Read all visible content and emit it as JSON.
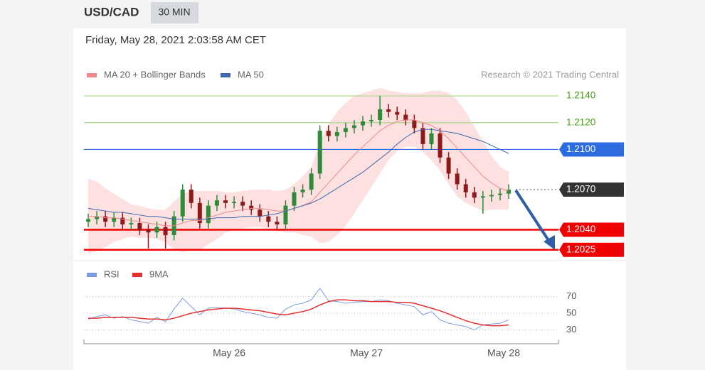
{
  "header": {
    "symbol": "USD/CAD",
    "timeframe": "30 MIN",
    "timestamp": "Friday, May 28, 2021 2:03:58 AM CET"
  },
  "chart_data": [
    {
      "type": "candlestick",
      "annotation": "Research © 2021 Trading Central",
      "categories": [
        null,
        null,
        null,
        null,
        null,
        null,
        null,
        null,
        null,
        null,
        null,
        null,
        null,
        null,
        null,
        null,
        null,
        null,
        null,
        null,
        null,
        null,
        null,
        null,
        null,
        null,
        null,
        null,
        null,
        null,
        null,
        null,
        null,
        null,
        null,
        null,
        null,
        null,
        null,
        null,
        null,
        null,
        null,
        null,
        null,
        null,
        null,
        null,
        null,
        null
      ],
      "open": [
        1.2046,
        1.2048,
        1.205,
        1.2046,
        1.2049,
        1.2044,
        1.2045,
        1.204,
        1.2038,
        1.2042,
        1.2036,
        1.205,
        1.207,
        1.206,
        1.2045,
        1.2058,
        1.2062,
        1.206,
        1.2061,
        1.2058,
        1.2055,
        1.205,
        1.2046,
        1.2044,
        1.2058,
        1.2068,
        1.207,
        1.2082,
        1.2114,
        1.211,
        1.2113,
        1.2116,
        1.2118,
        1.2121,
        1.2122,
        1.213,
        1.2128,
        1.2126,
        1.2122,
        1.2116,
        1.2104,
        1.2112,
        1.2094,
        1.2082,
        1.2074,
        1.2068,
        1.2064,
        1.2065,
        1.2066,
        1.2067
      ],
      "high": [
        1.2052,
        1.2054,
        1.2054,
        1.2053,
        1.2053,
        1.2049,
        1.2049,
        1.2044,
        1.2046,
        1.2046,
        1.2054,
        1.2074,
        1.2074,
        1.2064,
        1.2062,
        1.2066,
        1.2066,
        1.2065,
        1.2065,
        1.2062,
        1.2059,
        1.2054,
        1.205,
        1.2062,
        1.2072,
        1.2074,
        1.2086,
        1.2118,
        1.2118,
        1.2117,
        1.212,
        1.2122,
        1.2125,
        1.2126,
        1.214,
        1.2134,
        1.2132,
        1.213,
        1.2126,
        1.212,
        1.2116,
        1.2116,
        1.2098,
        1.2086,
        1.2078,
        1.2072,
        1.2069,
        1.207,
        1.2071,
        1.2074
      ],
      "low": [
        1.2042,
        1.2044,
        1.2042,
        1.2042,
        1.204,
        1.204,
        1.2036,
        1.2026,
        1.2034,
        1.2026,
        1.2032,
        1.2046,
        1.2056,
        1.2041,
        1.2041,
        1.2054,
        1.2056,
        1.2056,
        1.2054,
        1.2051,
        1.2046,
        1.2042,
        1.204,
        1.204,
        1.2054,
        1.2064,
        1.2066,
        1.2078,
        1.2106,
        1.2106,
        1.2109,
        1.2112,
        1.2114,
        1.2117,
        1.2118,
        1.2124,
        1.2122,
        1.2118,
        1.2112,
        1.21,
        1.21,
        1.209,
        1.2078,
        1.207,
        1.2064,
        1.206,
        1.2052,
        1.2061,
        1.2062,
        1.2063
      ],
      "close": [
        1.2048,
        1.205,
        1.2046,
        1.2049,
        1.2044,
        1.2045,
        1.204,
        1.2038,
        1.2042,
        1.2036,
        1.205,
        1.207,
        1.206,
        1.2045,
        1.2058,
        1.2062,
        1.206,
        1.2061,
        1.2058,
        1.2055,
        1.205,
        1.2046,
        1.2044,
        1.2058,
        1.2068,
        1.207,
        1.2082,
        1.2114,
        1.211,
        1.2113,
        1.2116,
        1.2118,
        1.2121,
        1.2122,
        1.213,
        1.2128,
        1.2126,
        1.2122,
        1.2116,
        1.2104,
        1.2112,
        1.2094,
        1.2082,
        1.2074,
        1.2068,
        1.2064,
        1.2065,
        1.2066,
        1.2067,
        1.207
      ],
      "up_color": "#2f8a3a",
      "down_color": "#8c1c1c",
      "series": [
        {
          "name": "MA 20 + Bollinger Bands",
          "color": "#f08a8a",
          "band_color": "#fde0e0",
          "values": [
            1.205,
            1.205,
            1.2049,
            1.2049,
            1.2048,
            1.2047,
            1.2046,
            1.2045,
            1.2044,
            1.2043,
            1.2043,
            1.2045,
            1.2047,
            1.2047,
            1.2049,
            1.2051,
            1.2053,
            1.2054,
            1.2055,
            1.2056,
            1.2056,
            1.2055,
            1.2054,
            1.2054,
            1.2056,
            1.2058,
            1.2061,
            1.2068,
            1.2075,
            1.2082,
            1.2089,
            1.2096,
            1.2102,
            1.2108,
            1.2114,
            1.2118,
            1.2121,
            1.2122,
            1.2122,
            1.212,
            1.2118,
            1.2114,
            1.2108,
            1.2101,
            1.2094,
            1.2087,
            1.208,
            1.2075,
            1.2071,
            1.2069
          ],
          "upper": [
            1.2078,
            1.2076,
            1.2071,
            1.2067,
            1.2063,
            1.2059,
            1.2058,
            1.2056,
            1.2055,
            1.2055,
            1.2061,
            1.2067,
            1.2069,
            1.2069,
            1.2069,
            1.2069,
            1.2068,
            1.2068,
            1.2069,
            1.207,
            1.207,
            1.207,
            1.2069,
            1.207,
            1.2074,
            1.208,
            1.2087,
            1.2106,
            1.2119,
            1.2128,
            1.2135,
            1.214,
            1.2142,
            1.2144,
            1.2146,
            1.2144,
            1.2143,
            1.2142,
            1.2142,
            1.2142,
            1.2144,
            1.2144,
            1.2142,
            1.2137,
            1.2128,
            1.2117,
            1.2106,
            1.2095,
            1.2087,
            1.2083
          ],
          "lower": [
            1.2022,
            1.2024,
            1.2027,
            1.2031,
            1.2033,
            1.2035,
            1.2034,
            1.2034,
            1.2033,
            1.2031,
            1.2025,
            1.2023,
            1.2025,
            1.2025,
            1.2029,
            1.2033,
            1.2038,
            1.204,
            1.2041,
            1.2042,
            1.2042,
            1.204,
            1.2039,
            1.2038,
            1.2038,
            1.2036,
            1.2035,
            1.203,
            1.2031,
            1.2036,
            1.2043,
            1.2052,
            1.2062,
            1.2072,
            1.2082,
            1.2092,
            1.2099,
            1.2102,
            1.2102,
            1.2098,
            1.2092,
            1.2084,
            1.2074,
            1.2065,
            1.206,
            1.2057,
            1.2054,
            1.2055,
            1.2055,
            1.2055
          ]
        },
        {
          "name": "MA 50",
          "color": "#3b68b0",
          "values": [
            1.2056,
            1.2055,
            1.2054,
            1.2053,
            1.2053,
            1.2052,
            1.2051,
            1.205,
            1.205,
            1.2049,
            1.2048,
            1.2048,
            1.2048,
            1.2048,
            1.2048,
            1.2049,
            1.2049,
            1.2049,
            1.205,
            1.205,
            1.205,
            1.2051,
            1.2052,
            1.2054,
            1.2056,
            1.2058,
            1.206,
            1.2063,
            1.2067,
            1.2071,
            1.2075,
            1.2079,
            1.2083,
            1.2088,
            1.2093,
            1.2098,
            1.2104,
            1.2109,
            1.2113,
            1.2115,
            1.2115,
            1.2114,
            1.2113,
            1.2112,
            1.211,
            1.2108,
            1.2106,
            1.2103,
            1.21,
            1.2097
          ]
        }
      ],
      "levels": [
        {
          "value": 1.214,
          "label": "1.2140",
          "color": "#a8d88a",
          "text_color": "#48a010",
          "tag": false
        },
        {
          "value": 1.212,
          "label": "1.2120",
          "color": "#a8d88a",
          "text_color": "#48a010",
          "tag": false
        },
        {
          "value": 1.21,
          "label": "1.2100",
          "color": "#2d6be0",
          "text_color": "#ffffff",
          "tag": true
        },
        {
          "value": 1.207,
          "label": "1.2070",
          "color": "#333333",
          "text_color": "#ffffff",
          "tag": true
        },
        {
          "value": 1.204,
          "label": "1.2040",
          "color": "#f00000",
          "text_color": "#ffffff",
          "tag": true
        },
        {
          "value": 1.2025,
          "label": "1.2025",
          "color": "#f00000",
          "text_color": "#ffffff",
          "tag": true
        }
      ],
      "xlim": [
        -0.5,
        54.8
      ],
      "ylim": [
        1.2018,
        1.2148
      ]
    },
    {
      "type": "line",
      "categories": [
        null,
        null,
        null,
        null,
        null,
        null,
        null,
        null,
        null,
        null,
        null,
        null,
        null,
        null,
        null,
        null,
        null,
        null,
        null,
        null,
        null,
        null,
        null,
        null,
        null,
        null,
        null,
        null,
        null,
        null,
        null,
        null,
        null,
        null,
        null,
        null,
        null,
        null,
        null,
        null,
        null,
        null,
        null,
        null,
        null,
        null,
        null,
        null,
        null,
        null
      ],
      "series": [
        {
          "name": "RSI",
          "color": "#7b9be0",
          "values": [
            43,
            46,
            48,
            44,
            46,
            42,
            40,
            38,
            45,
            40,
            55,
            68,
            58,
            48,
            56,
            57,
            56,
            55,
            52,
            50,
            48,
            45,
            44,
            55,
            60,
            62,
            66,
            80,
            65,
            64,
            62,
            63,
            64,
            64,
            66,
            65,
            62,
            60,
            58,
            48,
            52,
            42,
            38,
            36,
            34,
            30,
            36,
            37,
            38,
            42
          ]
        },
        {
          "name": "9MA",
          "color": "#e53030",
          "values": [
            44,
            44,
            45,
            45,
            45,
            45,
            44,
            43,
            43,
            42,
            44,
            47,
            50,
            52,
            54,
            55,
            56,
            56,
            55,
            54,
            53,
            51,
            49,
            48,
            50,
            52,
            55,
            60,
            64,
            66,
            66,
            65,
            65,
            64,
            64,
            64,
            63,
            63,
            62,
            59,
            56,
            53,
            49,
            45,
            41,
            38,
            36,
            35,
            35,
            36
          ]
        }
      ],
      "xlim": [
        -0.5,
        54.8
      ],
      "ylim": [
        19,
        85
      ],
      "yticks": [
        70,
        50,
        30
      ],
      "grid": true,
      "xticks": [
        {
          "value": 16.42,
          "label": "May 26"
        },
        {
          "value": 32.42,
          "label": "May 27"
        },
        {
          "value": 48.42,
          "label": "May 28"
        }
      ]
    }
  ]
}
